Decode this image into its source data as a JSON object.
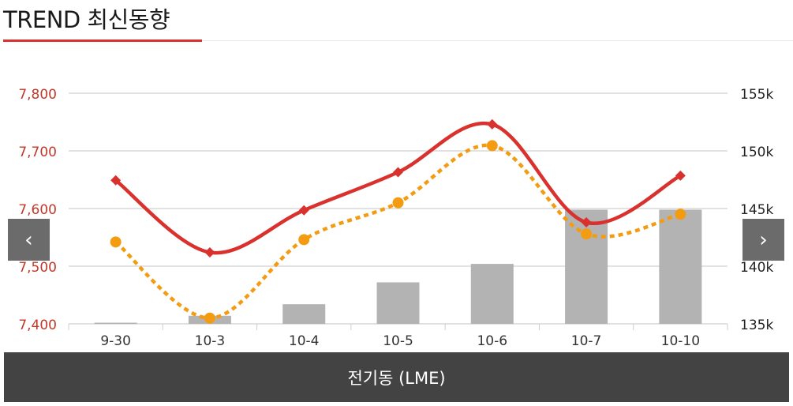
{
  "header": {
    "title": "TREND 최신동향"
  },
  "navigation": {
    "prev_icon": "‹",
    "next_icon": "›"
  },
  "footer": {
    "label": "전기동 (LME)"
  },
  "colors": {
    "price_line": "#d9312d",
    "dotted_line": "#f39c12",
    "bars": "#b3b3b3",
    "left_axis_text": "#c0392b",
    "right_axis_text": "#222222"
  },
  "chart_data": {
    "type": "bar",
    "categories": [
      "9-30",
      "10-3",
      "10-4",
      "10-5",
      "10-6",
      "10-7",
      "10-10"
    ],
    "left_axis": {
      "ticks": [
        "7,400",
        "7,500",
        "7,600",
        "7,700",
        "7,800"
      ],
      "ylim": [
        7400,
        7800
      ]
    },
    "right_axis": {
      "ticks": [
        "135k",
        "140k",
        "145k",
        "150k",
        "155k"
      ],
      "ylim": [
        135000,
        155000
      ]
    },
    "grid": true,
    "series": [
      {
        "type": "bar",
        "axis": "right",
        "values": [
          135100,
          135700,
          136700,
          138600,
          140200,
          144900,
          144900
        ]
      },
      {
        "type": "line",
        "style": "solid",
        "marker": "diamond",
        "axis": "left",
        "values": [
          7649,
          7524,
          7597,
          7663,
          7746,
          7576,
          7657
        ]
      },
      {
        "type": "line",
        "style": "dotted",
        "marker": "circle",
        "axis": "left",
        "values": [
          7542,
          7410,
          7546,
          7610,
          7709,
          7556,
          7590
        ]
      }
    ]
  }
}
